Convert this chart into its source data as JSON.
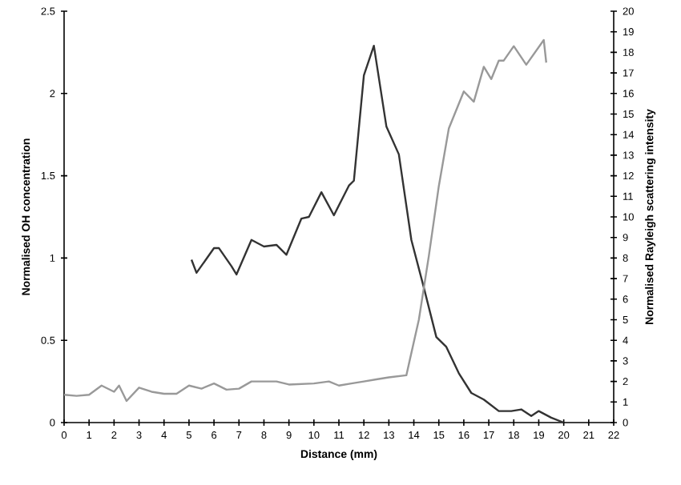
{
  "chart_data": {
    "type": "line",
    "xlabel": "Distance (mm)",
    "ylabel": "Normalised OH concentration",
    "y2label": "Normalised Rayleigh scattering intensity",
    "xlim": [
      0,
      22
    ],
    "xticks": [
      0,
      1,
      2,
      3,
      4,
      5,
      6,
      7,
      8,
      9,
      10,
      11,
      12,
      13,
      14,
      15,
      16,
      17,
      18,
      19,
      20,
      21,
      22
    ],
    "ylim": [
      0,
      2.5
    ],
    "yticks": [
      0,
      0.5,
      1,
      1.5,
      2,
      2.5
    ],
    "y2lim": [
      0,
      20
    ],
    "y2ticks": [
      0,
      1,
      2,
      3,
      4,
      5,
      6,
      7,
      8,
      9,
      10,
      11,
      12,
      13,
      14,
      15,
      16,
      17,
      18,
      19,
      20
    ],
    "grid": false,
    "legend": false,
    "marker": "none",
    "line_style": "solid",
    "series": [
      {
        "color": "#333333",
        "axis": "y",
        "x": [
          5.1,
          5.3,
          6.0,
          6.2,
          6.7,
          6.9,
          7.5,
          8.0,
          8.5,
          8.9,
          9.5,
          9.8,
          10.3,
          10.8,
          11.4,
          11.6,
          12.0,
          12.4,
          12.9,
          13.4,
          13.9,
          14.4,
          14.9,
          15.3,
          15.8,
          16.3,
          16.8,
          17.4,
          17.9,
          18.3,
          18.7,
          19.0,
          19.5,
          20.0
        ],
        "values": [
          0.99,
          0.91,
          1.06,
          1.06,
          0.95,
          0.9,
          1.11,
          1.07,
          1.08,
          1.02,
          1.24,
          1.25,
          1.4,
          1.26,
          1.44,
          1.47,
          2.11,
          2.29,
          1.8,
          1.63,
          1.11,
          0.82,
          0.52,
          0.46,
          0.3,
          0.18,
          0.14,
          0.07,
          0.07,
          0.08,
          0.04,
          0.07,
          0.03,
          0
        ]
      },
      {
        "color": "#999999",
        "axis": "y2",
        "x": [
          0,
          0.5,
          1.0,
          1.5,
          2.0,
          2.2,
          2.5,
          3.0,
          3.5,
          4.0,
          4.5,
          5.0,
          5.5,
          6.0,
          6.5,
          7.0,
          7.5,
          8.5,
          9.0,
          10.0,
          10.6,
          11.0,
          11.5,
          12.0,
          12.5,
          13.0,
          13.7,
          14.2,
          14.6,
          15.0,
          15.4,
          16.0,
          16.4,
          16.8,
          17.1,
          17.4,
          17.6,
          18.0,
          18.5,
          19.2,
          19.3
        ],
        "values": [
          1.35,
          1.3,
          1.35,
          1.8,
          1.5,
          1.8,
          1.05,
          1.7,
          1.5,
          1.4,
          1.4,
          1.8,
          1.65,
          1.9,
          1.6,
          1.65,
          2.0,
          2.0,
          1.85,
          1.9,
          2.0,
          1.8,
          1.9,
          2.0,
          2.1,
          2.2,
          2.3,
          5.0,
          8.1,
          11.5,
          14.3,
          16.1,
          15.6,
          17.3,
          16.7,
          17.6,
          17.6,
          18.3,
          17.4,
          18.6,
          17.5
        ]
      }
    ]
  }
}
